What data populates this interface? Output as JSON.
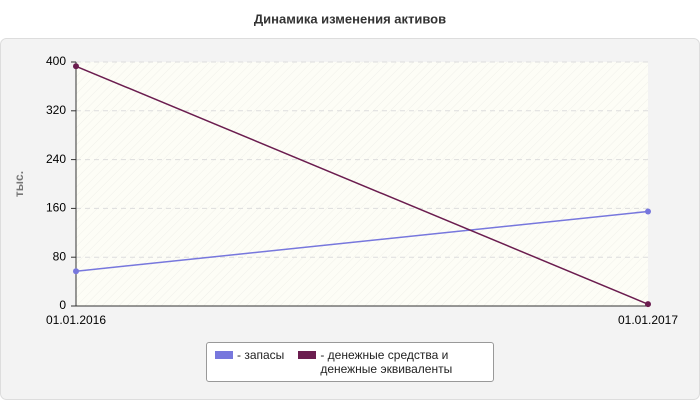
{
  "chart_data": {
    "type": "line",
    "title": "Динамика изменения активов",
    "y_label": "тыс.",
    "categories": [
      "01.01.2016",
      "01.01.2017"
    ],
    "series": [
      {
        "name": "- запасы",
        "color": "#7777dd",
        "values": [
          57,
          155
        ]
      },
      {
        "name": "- денежные средства и денежные эквиваленты",
        "color": "#6b1d4f",
        "values": [
          393,
          3
        ]
      }
    ],
    "ylim": [
      0,
      400
    ],
    "yticks": [
      0,
      80,
      160,
      240,
      320,
      400
    ],
    "grid": true
  }
}
